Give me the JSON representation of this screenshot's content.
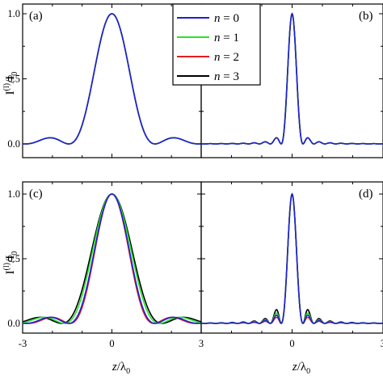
{
  "figure": {
    "ylabel": {
      "main": "I",
      "sup": "(l)",
      "mid": "/I",
      "sub": "0"
    },
    "xlabel": {
      "main": "z",
      "mid": "/λ",
      "sub": "0"
    }
  },
  "legend": {
    "placement": "top-center",
    "entries": [
      {
        "var": "n",
        "text": " = 0",
        "color": "#1f1fd6"
      },
      {
        "var": "n",
        "text": " = 1",
        "color": "#22e822"
      },
      {
        "var": "n",
        "text": " = 2",
        "color": "#e02020"
      },
      {
        "var": "n",
        "text": " = 3",
        "color": "#000000"
      }
    ]
  },
  "chart_data": [
    {
      "type": "line",
      "panel": "(a)",
      "xlim": [
        -3,
        3
      ],
      "ylim": [
        0,
        1
      ],
      "yticks": [
        "0.0",
        "0.5",
        "1.0"
      ],
      "xticks": [],
      "curve": {
        "kind": "sinc2",
        "width": 1.45,
        "extent": 1.0
      },
      "series": [
        {
          "name": "n = 0",
          "color": "#1f1fd6",
          "scale": 1.0
        },
        {
          "name": "n = 1",
          "color": "#22e822",
          "scale": 1.0
        },
        {
          "name": "n = 2",
          "color": "#e02020",
          "scale": 1.0
        },
        {
          "name": "n = 3",
          "color": "#000000",
          "scale": 1.0
        }
      ],
      "grid": false
    },
    {
      "type": "line",
      "panel": "(b)",
      "xlim": [
        -3,
        3
      ],
      "ylim": [
        0,
        1
      ],
      "yticks": [],
      "xticks": [],
      "curve": {
        "kind": "sinc2",
        "width": 0.36,
        "extent": 0.65
      },
      "series": [
        {
          "name": "n = 0",
          "color": "#1f1fd6",
          "scale": 1.0
        },
        {
          "name": "n = 1",
          "color": "#22e822",
          "scale": 1.0
        },
        {
          "name": "n = 2",
          "color": "#e02020",
          "scale": 1.0
        },
        {
          "name": "n = 3",
          "color": "#000000",
          "scale": 1.0
        }
      ],
      "grid": false
    },
    {
      "type": "line",
      "panel": "(c)",
      "xlim": [
        -3,
        3
      ],
      "ylim": [
        0,
        1
      ],
      "yticks": [
        "0.0",
        "0.5",
        "1.0"
      ],
      "xticks": [
        "-3",
        "0",
        "3"
      ],
      "curve": {
        "kind": "sinc2",
        "width": 1.45,
        "extent": 1.0
      },
      "series": [
        {
          "name": "n = 0",
          "color": "#1f1fd6",
          "scale": 1.0
        },
        {
          "name": "n = 1",
          "color": "#22e822",
          "scale": 1.1
        },
        {
          "name": "n = 2",
          "color": "#e02020",
          "scale": 0.97
        },
        {
          "name": "n = 3",
          "color": "#000000",
          "scale": 1.16
        }
      ],
      "grid": false
    },
    {
      "type": "line",
      "panel": "(d)",
      "xlim": [
        -3,
        3
      ],
      "ylim": [
        0,
        1
      ],
      "yticks": [],
      "xticks": [
        "0",
        "3"
      ],
      "curve": {
        "kind": "sinc2",
        "width": 0.36,
        "extent": 0.65
      },
      "series": [
        {
          "name": "n = 0",
          "color": "#1f1fd6",
          "scale": 1.0,
          "sidelobe": 1.35
        },
        {
          "name": "n = 1",
          "color": "#22e822",
          "scale": 1.0,
          "sidelobe": 1.7
        },
        {
          "name": "n = 2",
          "color": "#e02020",
          "scale": 1.0,
          "sidelobe": 1.0
        },
        {
          "name": "n = 3",
          "color": "#000000",
          "scale": 1.0,
          "sidelobe": 2.25
        }
      ],
      "grid": false
    }
  ]
}
